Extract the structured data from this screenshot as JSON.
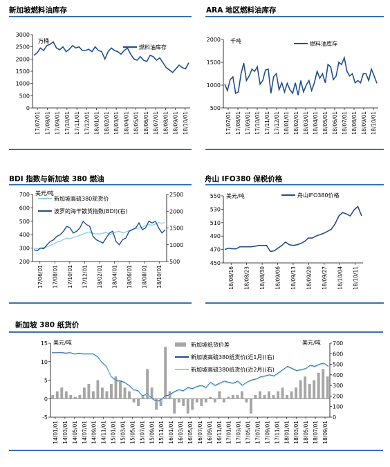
{
  "chart_data": [
    {
      "type": "line",
      "title": "新加坡燃料油库存",
      "unit_label": "万桶",
      "ylim": [
        0,
        3000
      ],
      "yticks": [
        "3000",
        "2500",
        "2000",
        "1500",
        "1000",
        "500",
        "0"
      ],
      "xticks": [
        "17/07/01",
        "17/08/01",
        "17/09/01",
        "17/10/01",
        "17/11/01",
        "17/12/01",
        "18/01/01",
        "18/02/01",
        "18/03/01",
        "18/04/01",
        "18/05/01",
        "18/06/01",
        "18/07/01",
        "18/08/01",
        "18/09/01",
        "18/10/01"
      ],
      "series": [
        {
          "name": "燃料油库存",
          "color": "#1f4e8c",
          "values": [
            2150,
            2250,
            2450,
            2350,
            2550,
            2600,
            2700,
            2450,
            2380,
            2500,
            2300,
            2400,
            2550,
            2450,
            2500,
            2350,
            2350,
            2400,
            2300,
            2500,
            2350,
            2300,
            2000,
            2300,
            2450,
            2350,
            2300,
            2200,
            2350,
            2450,
            2200,
            2000,
            1950,
            2100,
            1950,
            1900,
            2150,
            2100,
            1950,
            2050,
            1850,
            1650,
            1550,
            1450,
            1600,
            1750,
            1650,
            1600,
            1850
          ]
        }
      ]
    },
    {
      "type": "line",
      "title": "ARA 地区燃料油库存",
      "unit_label": "千吨",
      "ylim": [
        500,
        2000
      ],
      "yticks": [
        "2000",
        "1500",
        "1000",
        "500"
      ],
      "xticks": [
        "17/07/01",
        "17/08/01",
        "17/09/01",
        "17/10/01",
        "17/11/01",
        "17/12/01",
        "18/01/01",
        "18/02/01",
        "18/03/01",
        "18/04/01",
        "18/05/01",
        "18/06/01",
        "18/07/01",
        "18/08/01",
        "18/09/01",
        "18/10/01"
      ],
      "series": [
        {
          "name": "燃料油库存",
          "color": "#1f4e8c",
          "values": [
            1020,
            880,
            1120,
            1180,
            820,
            850,
            1250,
            1480,
            1100,
            1200,
            1350,
            1300,
            1400,
            1020,
            1100,
            1330,
            1350,
            820,
            1180,
            1250,
            900,
            1050,
            850,
            1040,
            900,
            820,
            1050,
            780,
            1100,
            850,
            1000,
            1100,
            880,
            1050,
            1300,
            1150,
            1250,
            1050,
            1450,
            1400,
            1120,
            1200,
            1500,
            1450,
            1600,
            1300,
            1200,
            1250,
            1050,
            1100,
            1050,
            1250,
            1250,
            1100,
            1350,
            1200,
            1040
          ]
        }
      ]
    },
    {
      "type": "line",
      "title": "BDI 指数与新加坡 380 燃油",
      "unit_label": "美元/吨",
      "ylim": [
        200,
        700
      ],
      "yticks": [
        "700",
        "600",
        "500",
        "400",
        "300",
        "200"
      ],
      "y2lim": [
        500,
        2500
      ],
      "y2ticks": [
        "2500",
        "2000",
        "1500",
        "1000",
        "500"
      ],
      "xticks": [
        "17/06/01",
        "17/08/01",
        "17/10/01",
        "17/12/01",
        "18/02/01",
        "18/04/01",
        "18/06/01",
        "18/08/01",
        "18/10/01"
      ],
      "series": [
        {
          "name": "新加坡高硫380现货价",
          "color": "#8fd0ee",
          "axis": "left",
          "values": [
            300,
            295,
            300,
            305,
            310,
            320,
            330,
            345,
            350,
            365,
            375,
            370,
            380,
            385,
            395,
            405,
            415,
            420,
            410,
            405,
            405,
            410,
            420,
            400,
            410,
            420,
            425,
            415,
            420,
            430,
            440,
            445,
            450,
            455,
            470,
            475,
            470,
            480,
            490,
            485,
            490
          ]
        },
        {
          "name": "波罗的海干散货指数(BDI)(右)",
          "color": "#1f4e8c",
          "axis": "right",
          "values": [
            850,
            820,
            900,
            880,
            1000,
            1100,
            1150,
            1250,
            1300,
            1400,
            1550,
            1500,
            1350,
            1400,
            1500,
            1700,
            1600,
            1550,
            1250,
            1150,
            1100,
            1050,
            1200,
            1350,
            1400,
            1100,
            1000,
            1150,
            1200,
            1400,
            1450,
            1500,
            1650,
            1450,
            1500,
            1700,
            1650,
            1700,
            1500,
            1350,
            1450
          ]
        }
      ]
    },
    {
      "type": "line",
      "title": "舟山 IFO380 保税价格",
      "unit_label": "美元/吨",
      "ylim": [
        450,
        550
      ],
      "yticks": [
        "550",
        "530",
        "510",
        "490",
        "470",
        "450"
      ],
      "xticks": [
        "18/08/16",
        "18/08/23",
        "18/08/30",
        "18/09/06",
        "18/09/13",
        "18/09/20",
        "18/09/27",
        "18/10/04",
        "18/10/11"
      ],
      "series": [
        {
          "name": "舟山IFO380价格",
          "color": "#1f4e8c",
          "values": [
            470,
            472,
            471,
            471,
            474,
            474,
            474,
            474,
            475,
            476,
            476,
            476,
            467,
            468,
            472,
            476,
            481,
            477,
            476,
            477,
            479,
            482,
            487,
            487,
            490,
            492,
            494,
            497,
            500,
            508,
            520,
            525,
            523,
            520,
            529,
            534,
            520
          ]
        }
      ]
    },
    {
      "type": "line",
      "title": "新加坡 380 纸货价",
      "unit_label": "美元/吨",
      "right_unit_label": "美元/吨",
      "ylim": [
        -5,
        15
      ],
      "yticks": [
        "15",
        "10",
        "5",
        "0",
        "-5"
      ],
      "y2lim": [
        0,
        700
      ],
      "y2ticks": [
        "700",
        "600",
        "500",
        "400",
        "300",
        "200",
        "100",
        "0"
      ],
      "xticks": [
        "14/01/01",
        "14/03/01",
        "14/05/01",
        "14/07/01",
        "14/09/01",
        "14/11/01",
        "15/01/01",
        "15/03/01",
        "15/05/01",
        "15/07/01",
        "15/09/01",
        "15/11/01",
        "16/01/01",
        "16/03/01",
        "16/05/01",
        "16/07/01",
        "16/09/01",
        "16/11/01",
        "17/01/01",
        "17/03/01",
        "17/05/01",
        "17/07/01",
        "17/09/01",
        "17/11/01",
        "18/01/01",
        "18/03/01",
        "18/05/01",
        "18/07/01",
        "18/09/01"
      ],
      "series": [
        {
          "name": "新加坡纸货价差",
          "color": "#a6a6a6",
          "axis": "left",
          "kind": "bar",
          "values": [
            1,
            2,
            3,
            2,
            1,
            0.5,
            1,
            3,
            4,
            2,
            5,
            3,
            2,
            4,
            6,
            5,
            3,
            2,
            -1,
            -2,
            1,
            8,
            3,
            -3,
            -2,
            14,
            2,
            -4,
            -1,
            -2,
            -4,
            -3,
            -1,
            -2,
            -1,
            0.5,
            -1,
            2,
            -1,
            0.5,
            1,
            1,
            2,
            -1,
            -4,
            1,
            2,
            1,
            2,
            1,
            2,
            3,
            1,
            2,
            3,
            5,
            6,
            4,
            5,
            7,
            8,
            6
          ]
        },
        {
          "name": "新加坡高硫380纸货价(近1月)(右)",
          "color": "#1f4e8c",
          "axis": "right",
          "values": [
            610,
            610,
            612,
            605,
            610,
            600,
            605,
            600,
            600,
            600,
            575,
            520,
            480,
            390,
            350,
            340,
            330,
            300,
            260,
            250,
            200,
            220,
            180,
            150,
            160,
            200,
            210,
            240,
            260,
            250,
            280,
            270,
            290,
            300,
            280,
            330,
            300,
            320,
            340,
            330,
            320,
            340,
            300,
            330,
            350,
            360,
            380,
            390,
            400,
            390,
            420,
            450,
            480,
            460,
            440,
            450,
            460,
            490,
            480,
            500,
            510,
            480
          ]
        },
        {
          "name": "新加坡高硫380纸货价(近2月)(右)",
          "color": "#8fd0ee",
          "axis": "right",
          "values": [
            605,
            605,
            608,
            600,
            605,
            595,
            600,
            595,
            595,
            595,
            570,
            515,
            475,
            385,
            345,
            335,
            325,
            295,
            255,
            245,
            195,
            215,
            175,
            145,
            155,
            195,
            205,
            235,
            255,
            245,
            275,
            265,
            285,
            295,
            275,
            325,
            295,
            315,
            335,
            325,
            315,
            335,
            295,
            325,
            345,
            355,
            375,
            385,
            395,
            385,
            415,
            445,
            475,
            455,
            435,
            445,
            455,
            485,
            475,
            495,
            505,
            475
          ]
        }
      ]
    }
  ]
}
